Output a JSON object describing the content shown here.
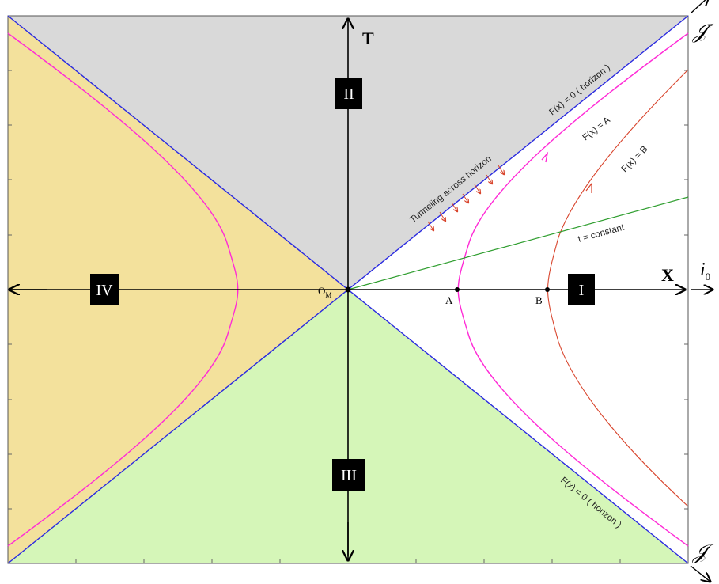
{
  "axes": {
    "t_label": "T",
    "x_label": "X",
    "origin_label": "O",
    "origin_subscript": "M",
    "i0_label": "i",
    "i0_subscript": "0"
  },
  "regions": {
    "I": "I",
    "II": "II",
    "III": "III",
    "IV": "IV"
  },
  "scri": {
    "top": "𝒥",
    "top_sup": "+",
    "bottom": "𝒥",
    "bottom_sup": "-"
  },
  "curve_labels": {
    "horizon_upper": "F(x) = 0  ( horizon )",
    "horizon_lower": "F(x) = 0  ( horizon )",
    "curve_a": "F(x) = A",
    "curve_b": "F(x) = B",
    "t_constant": "t = constant",
    "tunneling": "Tunneling across horizon"
  },
  "points": {
    "A": "A",
    "B": "B"
  },
  "colors": {
    "region_II": "#d9d9d9",
    "region_III": "#d5f6b8",
    "region_IV": "#f3e19c",
    "horizon": "#2a2ae0",
    "curve_a": "#ff2bd6",
    "curve_b": "#d8442c",
    "t_constant": "#2f9e2f",
    "axis": "#000000"
  }
}
